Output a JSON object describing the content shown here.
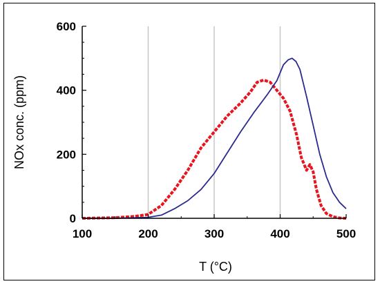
{
  "chart_data": {
    "type": "line",
    "title": "",
    "xlabel": "T (°C)",
    "ylabel": "NOx conc. (ppm)",
    "xlim": [
      100,
      500
    ],
    "ylim": [
      0,
      600
    ],
    "x_ticks": [
      "100",
      "200",
      "300",
      "400",
      "500"
    ],
    "y_ticks": [
      "0",
      "200",
      "400",
      "600"
    ],
    "grid": {
      "vertical": true,
      "horizontal": false
    },
    "legend": "none",
    "series": [
      {
        "color": "#e8141e",
        "style": "thick-dotted",
        "x": [
          100,
          150,
          180,
          200,
          220,
          240,
          260,
          280,
          300,
          320,
          340,
          355,
          365,
          375,
          385,
          395,
          405,
          415,
          425,
          432,
          440,
          445,
          450,
          455,
          462,
          470,
          480,
          490,
          500
        ],
        "y": [
          0,
          2,
          6,
          12,
          40,
          90,
          150,
          220,
          270,
          320,
          360,
          395,
          425,
          432,
          425,
          400,
          375,
          335,
          260,
          190,
          150,
          168,
          145,
          90,
          40,
          15,
          5,
          1,
          0
        ]
      },
      {
        "color": "#2a2a8e",
        "style": "solid",
        "x": [
          100,
          150,
          200,
          220,
          240,
          260,
          280,
          300,
          320,
          340,
          360,
          380,
          395,
          405,
          412,
          418,
          424,
          430,
          440,
          450,
          460,
          470,
          480,
          490,
          500
        ],
        "y": [
          0,
          0,
          3,
          10,
          30,
          55,
          90,
          140,
          205,
          270,
          330,
          385,
          430,
          480,
          495,
          500,
          490,
          465,
          380,
          290,
          200,
          130,
          80,
          50,
          30
        ]
      }
    ]
  }
}
